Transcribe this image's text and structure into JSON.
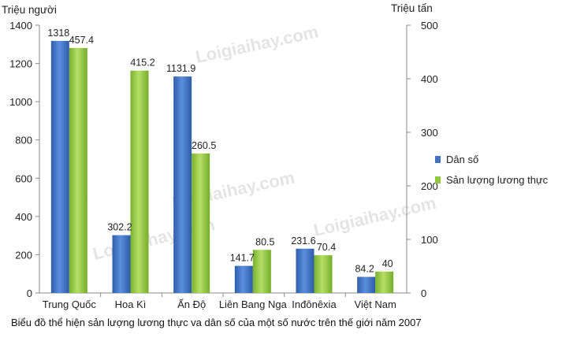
{
  "chart_data": {
    "type": "bar",
    "categories": [
      "Trung Quốc",
      "Hoa Kì",
      "Ấn Độ",
      "Liên Bang Nga",
      "Inđônêxia",
      "Việt Nam"
    ],
    "series": [
      {
        "name": "Dân số",
        "axis": "left",
        "color": "#4472c4",
        "values": [
          1318,
          302.2,
          1131.9,
          141.7,
          231.6,
          84.2
        ]
      },
      {
        "name": "Sản lượng lương thực",
        "axis": "right",
        "color": "#92c83e",
        "values": [
          457.4,
          415.2,
          260.5,
          80.5,
          70.4,
          40
        ]
      }
    ],
    "value_labels": {
      "series_0": [
        "1318",
        "302.2",
        "1131.9",
        "141.7",
        "231.6",
        "84.2"
      ],
      "series_1": [
        "457.4",
        "415.2",
        "260.5",
        "80.5",
        "70.4",
        "40"
      ]
    },
    "y_left": {
      "label": "Triệu người",
      "min": 0,
      "max": 1400,
      "ticks": [
        0,
        200,
        400,
        600,
        800,
        1000,
        1200,
        1400
      ]
    },
    "y_right": {
      "label": "Triệu tấn",
      "min": 0,
      "max": 500,
      "ticks": [
        0,
        100,
        200,
        300,
        400,
        500
      ]
    },
    "legend_position": "right",
    "grid": false,
    "caption": "Biểu đồ thể hiện sản lượng lương thực va dân số của một số nước trên thế giới năm 2007",
    "watermark": "Loigiaihay.com"
  }
}
